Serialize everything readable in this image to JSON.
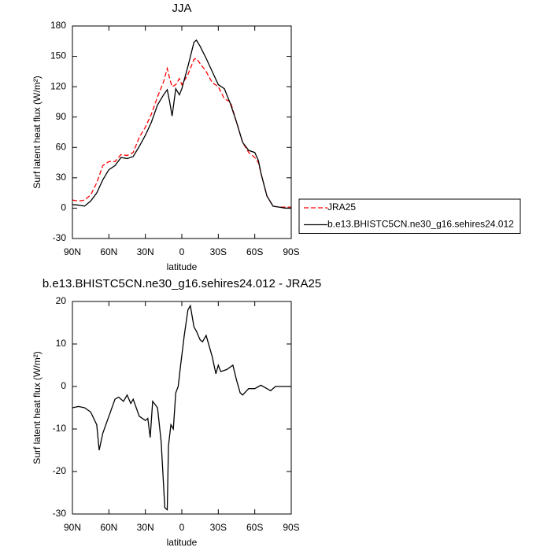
{
  "chart_data": [
    {
      "type": "line",
      "title": "JJA",
      "xlabel": "latitude",
      "ylabel": "Surf latent heat flux (W/m²)",
      "x": [
        90,
        85,
        80,
        75,
        70,
        65,
        60,
        55,
        50,
        45,
        40,
        35,
        30,
        25,
        20,
        15,
        12,
        10,
        8,
        5,
        2,
        0,
        -5,
        -10,
        -12,
        -15,
        -20,
        -25,
        -30,
        -35,
        -40,
        -45,
        -50,
        -55,
        -60,
        -63,
        -65,
        -70,
        -75,
        -80,
        -85,
        -90
      ],
      "series": [
        {
          "name": "JRA25",
          "color": "#ff0000",
          "line_style": "dashed",
          "values": [
            8,
            7,
            8,
            13,
            25,
            42,
            46,
            46,
            53,
            52,
            55,
            70,
            80,
            93,
            110,
            125,
            138,
            128,
            120,
            122,
            128,
            122,
            132,
            147,
            148,
            143,
            135,
            124,
            120,
            108,
            105,
            85,
            65,
            55,
            50,
            45,
            35,
            12,
            2,
            1,
            1,
            1
          ]
        },
        {
          "name": "b.e13.BHISTC5CN.ne30_g16.sehires24.012",
          "color": "#000000",
          "line_style": "solid",
          "values": [
            3.5,
            3,
            2,
            7,
            15,
            28,
            38,
            42,
            50,
            49,
            51,
            61,
            72,
            85,
            102,
            112,
            117,
            105,
            91,
            118,
            112,
            118,
            140,
            164,
            166,
            160,
            148,
            135,
            122,
            118,
            103,
            85,
            65,
            57,
            55,
            47,
            35,
            12,
            2,
            1,
            0,
            0
          ]
        }
      ],
      "xlim": [
        90,
        -90
      ],
      "xticks": [
        {
          "value": 90,
          "label": "90N"
        },
        {
          "value": 60,
          "label": "60N"
        },
        {
          "value": 30,
          "label": "30N"
        },
        0,
        {
          "value": -30,
          "label": "30S"
        },
        {
          "value": -60,
          "label": "60S"
        },
        {
          "value": -90,
          "label": "90S"
        }
      ],
      "ylim": [
        -30,
        180
      ],
      "yticks": [
        -30,
        0,
        30,
        60,
        90,
        120,
        150,
        180
      ],
      "legend": "right"
    },
    {
      "type": "line",
      "title": "b.e13.BHISTC5CN.ne30_g16.sehires24.012 - JRA25",
      "xlabel": "latitude",
      "ylabel": "Surf latent heat flux (W/m²)",
      "x": [
        90,
        85,
        80,
        75,
        70,
        68,
        65,
        60,
        55,
        52,
        48,
        45,
        42,
        40,
        35,
        30,
        28,
        26,
        24,
        20,
        17,
        14,
        12,
        11,
        9,
        7,
        5,
        3,
        1,
        -2,
        -5,
        -7,
        -10,
        -12,
        -15,
        -17,
        -20,
        -25,
        -28,
        -30,
        -32,
        -37,
        -42,
        -45,
        -48,
        -50,
        -55,
        -60,
        -65,
        -70,
        -73,
        -77,
        -80,
        -90
      ],
      "series": [
        {
          "name": null,
          "color": "#000000",
          "line_style": "solid",
          "values": [
            -5,
            -4.7,
            -5,
            -6,
            -9,
            -15,
            -11,
            -7,
            -3,
            -2.5,
            -3.5,
            -2,
            -4,
            -3,
            -7,
            -8,
            -7.5,
            -12,
            -3.5,
            -5,
            -13,
            -28.5,
            -29,
            -14,
            -9,
            -10,
            -1.5,
            0,
            5,
            12,
            18,
            19,
            14,
            13,
            11,
            10.5,
            12,
            7,
            3,
            5,
            3.5,
            4,
            5,
            1.5,
            -1.5,
            -2,
            -0.5,
            -0.5,
            0.3,
            -0.5,
            -1,
            0,
            0,
            0
          ]
        }
      ],
      "xlim": [
        90,
        -90
      ],
      "xticks": [
        {
          "value": 90,
          "label": "90N"
        },
        {
          "value": 60,
          "label": "60N"
        },
        {
          "value": 30,
          "label": "30N"
        },
        0,
        {
          "value": -30,
          "label": "30S"
        },
        {
          "value": -60,
          "label": "60S"
        },
        {
          "value": -90,
          "label": "90S"
        }
      ],
      "ylim": [
        -30,
        20
      ],
      "yticks": [
        -30,
        -20,
        -10,
        0,
        10,
        20
      ]
    }
  ]
}
